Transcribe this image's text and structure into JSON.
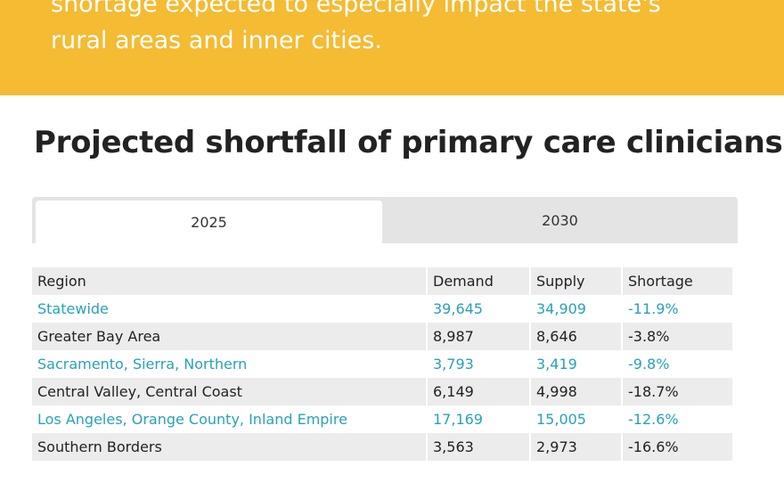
{
  "banner": {
    "line1": "shortage expected to especially impact the state's",
    "line2": "rural areas and inner cities."
  },
  "title": "Projected shortfall of primary care clinicians",
  "tabs": [
    {
      "label": "2025",
      "active": true
    },
    {
      "label": "2030",
      "active": false
    }
  ],
  "table": {
    "headers": [
      "Region",
      "Demand",
      "Supply",
      "Shortage"
    ],
    "rows": [
      [
        "Statewide",
        "39,645",
        "34,909",
        "-11.9%"
      ],
      [
        "Greater Bay Area",
        "8,987",
        "8,646",
        "-3.8%"
      ],
      [
        "Sacramento, Sierra, Northern",
        "3,793",
        "3,419",
        "-9.8%"
      ],
      [
        "Central Valley, Central Coast",
        "6,149",
        "4,998",
        "-18.7%"
      ],
      [
        "Los Angeles, Orange County, Inland Empire",
        "17,169",
        "15,005",
        "-12.6%"
      ],
      [
        "Southern Borders",
        "3,563",
        "2,973",
        "-16.6%"
      ]
    ]
  },
  "colors": {
    "banner": "#f4bb33",
    "link": "#27a2b6"
  }
}
